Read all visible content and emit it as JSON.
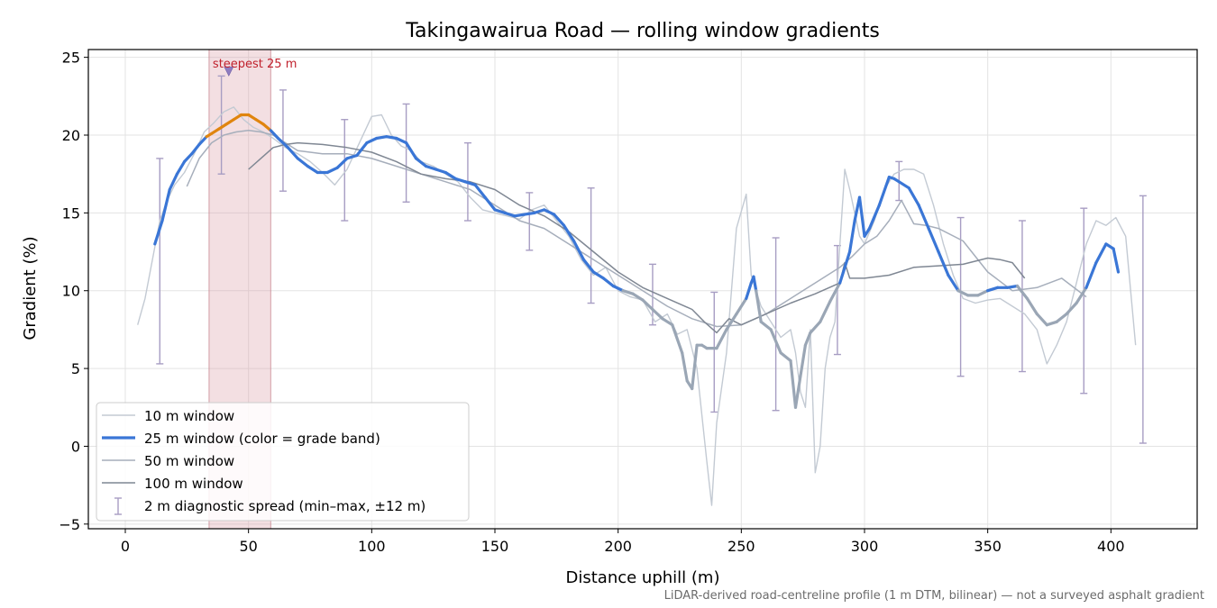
{
  "chart_data": {
    "type": "line",
    "title": "Takingawairua Road — rolling window gradients",
    "xlabel": "Distance uphill (m)",
    "ylabel": "Gradient (%)",
    "xlim": [
      -15,
      435
    ],
    "ylim": [
      -5.3,
      25.5
    ],
    "x_ticks": [
      0,
      50,
      100,
      150,
      200,
      250,
      300,
      350,
      400
    ],
    "y_ticks": [
      -5,
      0,
      5,
      10,
      15,
      20,
      25
    ],
    "y_tick_labels": [
      "−5",
      "0",
      "5",
      "10",
      "15",
      "20",
      "25"
    ],
    "grid": true,
    "legend_position": "lower-left",
    "highlight_band": {
      "x_start": 34,
      "x_end": 59,
      "label": "steepest 25 m",
      "marker_x": 42,
      "marker_y": 24.1
    },
    "series": [
      {
        "name": "10 m window",
        "color": "#c3cad3",
        "x": [
          5,
          8,
          11,
          14,
          17,
          20,
          24,
          28,
          32,
          36,
          40,
          44,
          48,
          52,
          56,
          60,
          65,
          70,
          75,
          80,
          85,
          90,
          95,
          100,
          104,
          108,
          112,
          116,
          120,
          125,
          130,
          135,
          140,
          145,
          150,
          155,
          160,
          165,
          170,
          175,
          180,
          185,
          190,
          195,
          200,
          205,
          210,
          215,
          220,
          224,
          228,
          232,
          236,
          238,
          240,
          244,
          248,
          252,
          254,
          256,
          258,
          262,
          266,
          270,
          272,
          274,
          276,
          278,
          280,
          282,
          284,
          286,
          288,
          290,
          292,
          294,
          296,
          298,
          300,
          304,
          308,
          312,
          316,
          320,
          324,
          328,
          332,
          336,
          340,
          345,
          350,
          355,
          360,
          365,
          370,
          374,
          378,
          382,
          386,
          390,
          394,
          398,
          402,
          406,
          410
        ],
        "values": [
          7.8,
          9.5,
          12.0,
          14.5,
          15.8,
          16.8,
          17.6,
          18.8,
          20.2,
          20.8,
          21.5,
          21.8,
          21.0,
          20.5,
          20.2,
          19.8,
          19.2,
          18.8,
          18.3,
          17.6,
          16.8,
          17.8,
          19.5,
          21.2,
          21.3,
          20.0,
          19.3,
          19.0,
          18.3,
          18.0,
          17.5,
          17.0,
          16.0,
          15.2,
          15.0,
          14.8,
          14.6,
          15.2,
          15.5,
          14.5,
          13.5,
          12.0,
          11.0,
          11.5,
          10.0,
          9.6,
          9.4,
          8.0,
          8.5,
          7.2,
          7.5,
          5.0,
          -1.0,
          -3.8,
          1.5,
          6.0,
          14.0,
          16.2,
          11.0,
          10.0,
          9.0,
          8.0,
          7.0,
          7.5,
          6.0,
          3.5,
          2.5,
          7.5,
          -1.7,
          0.0,
          5.0,
          7.0,
          8.0,
          13.0,
          17.8,
          16.5,
          15.0,
          13.5,
          13.0,
          14.5,
          16.5,
          17.5,
          17.8,
          17.8,
          17.5,
          15.5,
          13.0,
          11.0,
          9.5,
          9.2,
          9.4,
          9.5,
          9.0,
          8.5,
          7.5,
          5.3,
          6.5,
          8.0,
          10.5,
          13.0,
          14.5,
          14.2,
          14.7,
          13.5,
          6.5
        ]
      },
      {
        "name": "25 m window (color = grade band)",
        "color": "#3a76d6",
        "band_colors": {
          "steep": "#3a76d6",
          "moderate": "#9aa6b5",
          "steepest": "#e0850e"
        },
        "x": [
          12,
          15,
          18,
          21,
          24,
          27,
          30,
          33,
          35,
          38,
          41,
          44,
          47,
          50,
          53,
          56,
          59,
          62,
          66,
          70,
          74,
          78,
          82,
          86,
          90,
          94,
          98,
          102,
          106,
          110,
          114,
          118,
          122,
          126,
          130,
          134,
          138,
          142,
          146,
          150,
          154,
          158,
          162,
          166,
          170,
          174,
          178,
          182,
          186,
          190,
          194,
          198,
          202,
          206,
          210,
          214,
          218,
          222,
          226,
          228,
          230,
          232,
          234,
          236,
          240,
          244,
          248,
          252,
          254,
          255,
          256,
          258,
          262,
          266,
          270,
          272,
          274,
          276,
          278,
          282,
          286,
          290,
          294,
          296,
          298,
          300,
          302,
          306,
          310,
          312,
          314,
          318,
          322,
          326,
          330,
          334,
          338,
          342,
          346,
          350,
          354,
          358,
          362,
          366,
          370,
          374,
          378,
          382,
          386,
          390,
          394,
          398,
          401,
          403
        ],
        "values": [
          13.0,
          14.5,
          16.5,
          17.5,
          18.3,
          18.8,
          19.4,
          19.9,
          20.1,
          20.4,
          20.7,
          21.0,
          21.3,
          21.3,
          21.0,
          20.7,
          20.3,
          19.8,
          19.2,
          18.5,
          18.0,
          17.6,
          17.6,
          17.9,
          18.5,
          18.7,
          19.5,
          19.8,
          19.9,
          19.8,
          19.5,
          18.5,
          18.0,
          17.8,
          17.6,
          17.2,
          17.0,
          16.8,
          16.0,
          15.2,
          15.0,
          14.8,
          14.9,
          15.0,
          15.2,
          14.9,
          14.2,
          13.2,
          12.0,
          11.2,
          10.8,
          10.3,
          10.0,
          9.8,
          9.4,
          8.8,
          8.2,
          7.8,
          6.0,
          4.2,
          3.7,
          6.5,
          6.5,
          6.3,
          6.3,
          7.5,
          8.5,
          9.5,
          10.5,
          10.9,
          10.0,
          8.0,
          7.5,
          6.0,
          5.5,
          2.5,
          4.5,
          6.5,
          7.3,
          8.0,
          9.3,
          10.5,
          12.5,
          14.5,
          16.0,
          13.5,
          14.0,
          15.5,
          17.3,
          17.2,
          17.0,
          16.6,
          15.5,
          14.0,
          12.5,
          11.0,
          10.0,
          9.7,
          9.7,
          10.0,
          10.2,
          10.2,
          10.3,
          9.5,
          8.5,
          7.8,
          8.0,
          8.5,
          9.2,
          10.2,
          11.8,
          13.0,
          12.7,
          11.2
        ]
      },
      {
        "name": "50 m window",
        "color": "#a6aebb",
        "x": [
          25,
          30,
          35,
          40,
          45,
          50,
          55,
          60,
          65,
          70,
          80,
          90,
          100,
          110,
          120,
          130,
          140,
          150,
          160,
          170,
          180,
          190,
          200,
          210,
          220,
          230,
          240,
          250,
          260,
          270,
          280,
          290,
          295,
          300,
          305,
          310,
          315,
          320,
          325,
          330,
          340,
          350,
          360,
          370,
          380,
          390
        ],
        "values": [
          16.7,
          18.5,
          19.5,
          20.0,
          20.2,
          20.3,
          20.2,
          20.0,
          19.5,
          19.0,
          18.8,
          18.8,
          18.5,
          18.0,
          17.5,
          17.0,
          16.5,
          15.5,
          14.5,
          14.0,
          13.0,
          12.0,
          11.0,
          10.0,
          9.0,
          8.2,
          7.7,
          7.8,
          8.5,
          9.5,
          10.5,
          11.5,
          12.2,
          13.0,
          13.5,
          14.5,
          15.8,
          14.3,
          14.2,
          14.0,
          13.2,
          11.2,
          10.0,
          10.2,
          10.8,
          9.6
        ]
      },
      {
        "name": "100 m window",
        "color": "#7f8793",
        "x": [
          50,
          55,
          60,
          65,
          70,
          80,
          90,
          100,
          110,
          120,
          130,
          140,
          150,
          160,
          170,
          180,
          190,
          200,
          210,
          220,
          230,
          235,
          240,
          245,
          250,
          260,
          270,
          280,
          290,
          292,
          294,
          296,
          300,
          310,
          320,
          330,
          340,
          350,
          355,
          360,
          365
        ],
        "values": [
          17.8,
          18.5,
          19.2,
          19.4,
          19.5,
          19.4,
          19.2,
          18.9,
          18.3,
          17.5,
          17.2,
          17.0,
          16.5,
          15.5,
          14.8,
          13.8,
          12.5,
          11.2,
          10.2,
          9.5,
          8.8,
          8.0,
          7.3,
          8.2,
          7.8,
          8.5,
          9.2,
          9.8,
          10.5,
          11.8,
          10.8,
          10.8,
          10.8,
          11.0,
          11.5,
          11.6,
          11.7,
          12.1,
          12.0,
          11.8,
          10.8
        ]
      },
      {
        "name": "2 m diagnostic spread (min–max, ±12 m)",
        "color": "#a79dc3",
        "x": [
          14,
          39,
          64,
          89,
          114,
          139,
          164,
          189,
          214,
          239,
          264,
          289,
          314,
          339,
          364,
          389,
          413
        ],
        "low": [
          5.3,
          17.5,
          16.4,
          14.5,
          15.7,
          14.5,
          12.6,
          9.2,
          7.8,
          2.2,
          2.3,
          5.9,
          15.8,
          4.5,
          4.8,
          3.4,
          0.2
        ],
        "high": [
          18.5,
          23.8,
          22.9,
          21.0,
          22.0,
          19.5,
          16.3,
          16.6,
          11.7,
          9.9,
          13.4,
          12.9,
          18.3,
          14.7,
          14.5,
          15.3,
          16.1
        ]
      }
    ],
    "annotation": "steepest 25 m",
    "footnote": "LiDAR-derived road-centreline profile (1 m DTM, bilinear) — not a surveyed asphalt gradient"
  }
}
